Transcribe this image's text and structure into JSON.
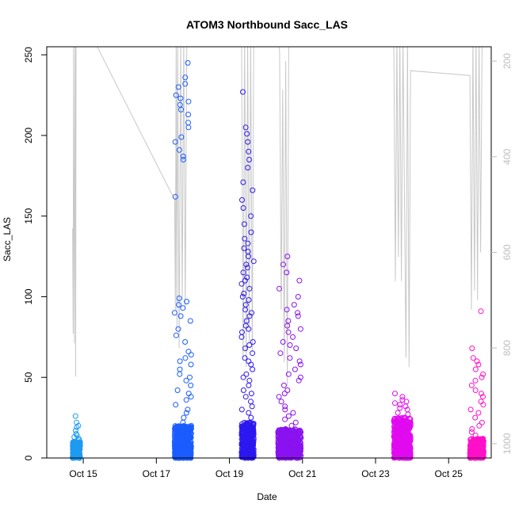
{
  "chart_data": {
    "type": "scatter",
    "title": "ATOM3 Northbound Sacc_LAS",
    "xlabel": "Date",
    "ylabel": "Sacc_LAS",
    "xlim": [
      "2024-10-14T00:00",
      "2024-10-26T04:00"
    ],
    "ylim": [
      0,
      255
    ],
    "grid": false,
    "x_ticks": [
      {
        "date": "2024-10-15T00:00",
        "label": "Oct 15"
      },
      {
        "date": "2024-10-17T00:00",
        "label": "Oct 17"
      },
      {
        "date": "2024-10-19T00:00",
        "label": "Oct 19"
      },
      {
        "date": "2024-10-21T00:00",
        "label": "Oct 21"
      },
      {
        "date": "2024-10-23T00:00",
        "label": "Oct 23"
      },
      {
        "date": "2024-10-25T00:00",
        "label": "Oct 25"
      }
    ],
    "y_ticks": [
      0,
      50,
      100,
      150,
      200,
      250
    ],
    "secondary_axis": {
      "side": "right",
      "reversed": true,
      "color": "#bdbdbd",
      "ylim": [
        170,
        1030
      ],
      "ticks": [
        200,
        400,
        600,
        800,
        1000
      ],
      "series_color": "#c8c8c8",
      "values": [
        [
          "2024-10-14T17:00",
          550
        ],
        [
          "2024-10-14T17:20",
          770
        ],
        [
          "2024-10-14T17:40",
          150
        ],
        [
          "2024-10-14T18:10",
          790
        ],
        [
          "2024-10-14T18:40",
          150
        ],
        [
          "2024-10-14T19:00",
          860
        ],
        [
          "2024-10-14T19:15",
          150
        ],
        [
          "2024-10-15T06:00",
          150
        ],
        [
          "2024-10-17T12:00",
          490
        ],
        [
          "2024-10-17T12:30",
          720
        ],
        [
          "2024-10-17T13:00",
          170
        ],
        [
          "2024-10-17T13:30",
          760
        ],
        [
          "2024-10-17T14:00",
          150
        ],
        [
          "2024-10-17T15:00",
          800
        ],
        [
          "2024-10-17T16:00",
          150
        ],
        [
          "2024-10-17T17:00",
          700
        ],
        [
          "2024-10-17T18:00",
          150
        ],
        [
          "2024-10-17T19:00",
          720
        ],
        [
          "2024-10-17T20:00",
          150
        ],
        [
          "2024-10-19T08:00",
          150
        ],
        [
          "2024-10-19T09:00",
          820
        ],
        [
          "2024-10-19T10:00",
          150
        ],
        [
          "2024-10-19T11:00",
          840
        ],
        [
          "2024-10-19T12:00",
          150
        ],
        [
          "2024-10-19T13:00",
          790
        ],
        [
          "2024-10-19T14:00",
          150
        ],
        [
          "2024-10-19T15:00",
          810
        ],
        [
          "2024-10-19T16:00",
          150
        ],
        [
          "2024-10-20T08:00",
          150
        ],
        [
          "2024-10-20T09:00",
          180
        ],
        [
          "2024-10-20T10:00",
          720
        ],
        [
          "2024-10-20T11:00",
          260
        ],
        [
          "2024-10-20T12:00",
          830
        ],
        [
          "2024-10-20T13:00",
          200
        ],
        [
          "2024-10-20T14:00",
          880
        ],
        [
          "2024-10-20T15:00",
          150
        ],
        [
          "2024-10-23T12:00",
          150
        ],
        [
          "2024-10-23T13:00",
          660
        ],
        [
          "2024-10-23T14:00",
          150
        ],
        [
          "2024-10-23T15:00",
          610
        ],
        [
          "2024-10-23T16:00",
          150
        ],
        [
          "2024-10-23T17:00",
          660
        ],
        [
          "2024-10-23T18:00",
          150
        ],
        [
          "2024-10-23T20:00",
          820
        ],
        [
          "2024-10-23T21:00",
          150
        ],
        [
          "2024-10-23T22:00",
          840
        ],
        [
          "2024-10-23T23:00",
          220
        ],
        [
          "2024-10-25T14:00",
          230
        ],
        [
          "2024-10-25T15:00",
          720
        ],
        [
          "2024-10-25T16:00",
          150
        ],
        [
          "2024-10-25T17:00",
          680
        ],
        [
          "2024-10-25T18:00",
          150
        ],
        [
          "2024-10-25T19:00",
          700
        ],
        [
          "2024-10-25T20:00",
          150
        ],
        [
          "2024-10-25T21:00",
          600
        ],
        [
          "2024-10-25T22:00",
          150
        ]
      ]
    },
    "series": [
      {
        "color": "#1e9bf0",
        "x_range": [
          "2024-10-14T17:00",
          "2024-10-14T22:00"
        ],
        "dense": {
          "count": 240,
          "range": [
            0,
            10
          ]
        },
        "points": [
          11,
          12,
          13,
          14,
          15,
          17,
          19,
          20,
          22,
          26
        ]
      },
      {
        "color": "#1a5cff",
        "x_range": [
          "2024-10-17T12:00",
          "2024-10-17T23:00"
        ],
        "dense": {
          "count": 520,
          "range": [
            0,
            20
          ]
        },
        "points": [
          22,
          25,
          28,
          30,
          33,
          36,
          38,
          40,
          42,
          45,
          48,
          50,
          52,
          55,
          58,
          60,
          62,
          64,
          66,
          72,
          76,
          80,
          85,
          88,
          90,
          93,
          95,
          97,
          99,
          162,
          185,
          187,
          191,
          196,
          199,
          205,
          208,
          213,
          216,
          219,
          221,
          223,
          225,
          230,
          232,
          236,
          245
        ]
      },
      {
        "color": "#2d18f0",
        "x_range": [
          "2024-10-19T08:00",
          "2024-10-19T16:00"
        ],
        "dense": {
          "count": 420,
          "range": [
            0,
            22
          ]
        },
        "points": [
          25,
          28,
          30,
          32,
          35,
          38,
          40,
          42,
          45,
          48,
          50,
          52,
          55,
          58,
          60,
          62,
          65,
          68,
          70,
          72,
          75,
          78,
          80,
          82,
          85,
          88,
          90,
          92,
          95,
          98,
          100,
          102,
          105,
          108,
          110,
          112,
          115,
          118,
          120,
          122,
          125,
          128,
          130,
          133,
          136,
          140,
          145,
          150,
          155,
          160,
          166,
          171,
          180,
          185,
          190,
          196,
          201,
          205,
          227
        ]
      },
      {
        "color": "#8a12f0",
        "x_range": [
          "2024-10-20T08:00",
          "2024-10-20T23:00"
        ],
        "dense": {
          "count": 460,
          "range": [
            0,
            18
          ]
        },
        "points": [
          20,
          22,
          24,
          26,
          28,
          30,
          32,
          35,
          38,
          40,
          42,
          45,
          48,
          50,
          52,
          55,
          58,
          60,
          62,
          65,
          68,
          70,
          72,
          75,
          78,
          80,
          82,
          85,
          88,
          90,
          92,
          95,
          100,
          105,
          110,
          115,
          120,
          125
        ]
      },
      {
        "color": "#e10af0",
        "x_range": [
          "2024-10-23T12:00",
          "2024-10-23T23:00"
        ],
        "dense": {
          "count": 520,
          "range": [
            0,
            25
          ]
        },
        "points": [
          27,
          28,
          30,
          31,
          32,
          33,
          34,
          35,
          36,
          38,
          40
        ]
      },
      {
        "color": "#ff10c8",
        "x_range": [
          "2024-10-25T14:00",
          "2024-10-25T23:00"
        ],
        "dense": {
          "count": 420,
          "range": [
            0,
            12
          ]
        },
        "points": [
          14,
          16,
          18,
          20,
          22,
          25,
          28,
          30,
          33,
          35,
          38,
          40,
          42,
          45,
          48,
          50,
          52,
          55,
          58,
          60,
          62,
          68,
          91
        ]
      }
    ]
  }
}
